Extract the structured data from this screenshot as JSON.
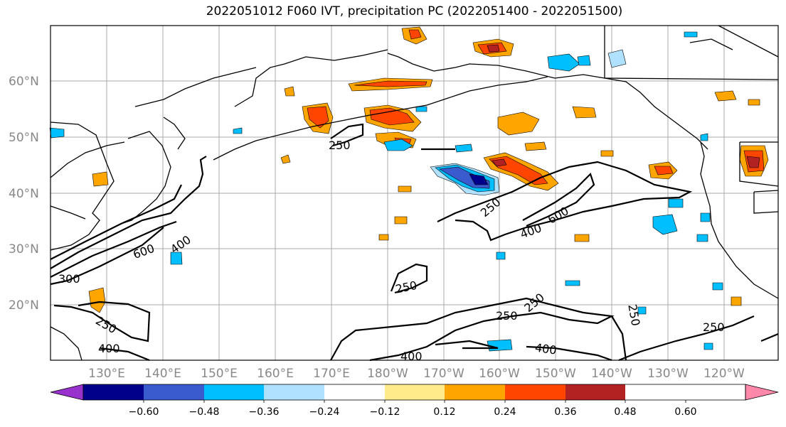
{
  "title": "2022051012 F060 IVT, precipitation PC (2022051400 - 2022051500)",
  "lat_labels": [
    "60°N",
    "50°N",
    "40°N",
    "30°N",
    "20°N"
  ],
  "lon_labels": [
    "130°E",
    "140°E",
    "150°E",
    "160°E",
    "170°E",
    "180°W",
    "170°W",
    "160°W",
    "150°W",
    "140°W",
    "130°W",
    "120°W"
  ],
  "colorbar": {
    "colors": [
      "#9932cc",
      "#00008b",
      "#3a5bcd",
      "#00bfff",
      "#b0e2ff",
      "#ffffff",
      "#ffeb8a",
      "#ffa500",
      "#ff4500",
      "#b22222",
      "#ff88aa"
    ],
    "tick_labels": [
      "−0.60",
      "−0.48",
      "−0.36",
      "−0.24",
      "−0.12",
      "0.12",
      "0.24",
      "0.36",
      "0.48",
      "0.60"
    ]
  },
  "ivt_contour_labels": [
    "250",
    "250",
    "250",
    "250",
    "250",
    "250",
    "250",
    "250",
    "400",
    "400",
    "400",
    "400",
    "600",
    "600",
    "300"
  ],
  "map_features": {
    "coastlines": "black",
    "gridlines": "gray",
    "ivt_contours": "black",
    "precip_pc_fill": "colormap"
  }
}
